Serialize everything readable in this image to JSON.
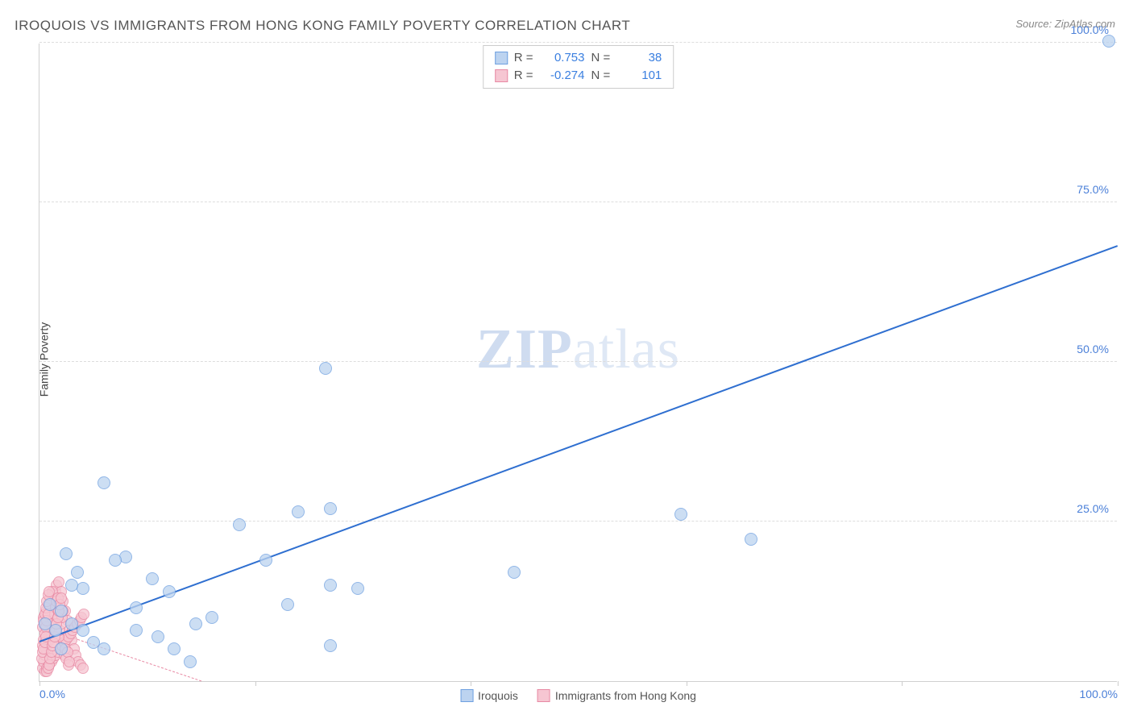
{
  "title": "IROQUOIS VS IMMIGRANTS FROM HONG KONG FAMILY POVERTY CORRELATION CHART",
  "source": "Source: ZipAtlas.com",
  "ylabel": "Family Poverty",
  "watermark_a": "ZIP",
  "watermark_b": "atlas",
  "chart": {
    "type": "scatter",
    "xlim": [
      0,
      100
    ],
    "ylim": [
      0,
      100
    ],
    "x_tick_positions": [
      0,
      20,
      40,
      60,
      80,
      100
    ],
    "x_tick_labels": [
      "0.0%",
      "",
      "",
      "",
      "",
      "100.0%"
    ],
    "y_gridlines": [
      25,
      50,
      75,
      100
    ],
    "y_tick_labels": [
      "25.0%",
      "50.0%",
      "75.0%",
      "100.0%"
    ],
    "background_color": "#ffffff",
    "grid_color": "#dddddd",
    "axis_color": "#d0d0d0",
    "tick_label_color": "#4a7fd8",
    "title_color": "#555555",
    "title_fontsize": 17,
    "label_fontsize": 14
  },
  "series": [
    {
      "name": "Iroquois",
      "marker_fill": "#bcd3f0",
      "marker_stroke": "#6ea0e0",
      "marker_radius": 8,
      "trend_color": "#2f6fd0",
      "trend_style": "solid",
      "trend_width": 2,
      "R": "0.753",
      "N": "38",
      "trend": {
        "x1": 0,
        "y1": 6,
        "x2": 100,
        "y2": 68
      },
      "points": [
        [
          99.2,
          100.2
        ],
        [
          59.5,
          26.1
        ],
        [
          66.0,
          22.2
        ],
        [
          44.0,
          17.0
        ],
        [
          26.5,
          49.0
        ],
        [
          24.0,
          26.5
        ],
        [
          27.0,
          27.0
        ],
        [
          18.5,
          24.5
        ],
        [
          21.0,
          19.0
        ],
        [
          23.0,
          12.0
        ],
        [
          27.0,
          15.0
        ],
        [
          29.5,
          14.5
        ],
        [
          27.0,
          5.5
        ],
        [
          14.0,
          3.0
        ],
        [
          14.5,
          9.0
        ],
        [
          16.0,
          10.0
        ],
        [
          12.0,
          14.0
        ],
        [
          12.5,
          5.0
        ],
        [
          10.5,
          16.0
        ],
        [
          11.0,
          7.0
        ],
        [
          9.0,
          11.5
        ],
        [
          9.0,
          8.0
        ],
        [
          8.0,
          19.5
        ],
        [
          7.0,
          19.0
        ],
        [
          6.0,
          31.0
        ],
        [
          4.0,
          14.5
        ],
        [
          3.5,
          17.0
        ],
        [
          3.0,
          15.0
        ],
        [
          2.5,
          20.0
        ],
        [
          2.0,
          11.0
        ],
        [
          3.0,
          9.0
        ],
        [
          4.0,
          8.0
        ],
        [
          5.0,
          6.0
        ],
        [
          6.0,
          5.0
        ],
        [
          2.0,
          5.0
        ],
        [
          1.5,
          8.0
        ],
        [
          1.0,
          12.0
        ],
        [
          0.5,
          9.0
        ]
      ]
    },
    {
      "name": "Immigrants from Hong Kong",
      "marker_fill": "#f6c6d2",
      "marker_stroke": "#e88aa4",
      "marker_radius": 7,
      "trend_color": "#e88aa4",
      "trend_style": "dashed",
      "trend_width": 1.5,
      "R": "-0.274",
      "N": "101",
      "trend": {
        "x1": 0,
        "y1": 8.5,
        "x2": 15,
        "y2": 0
      },
      "points": [
        [
          0.3,
          2.0
        ],
        [
          0.4,
          3.0
        ],
        [
          0.5,
          4.0
        ],
        [
          0.6,
          5.0
        ],
        [
          0.7,
          6.0
        ],
        [
          0.8,
          7.0
        ],
        [
          0.9,
          8.0
        ],
        [
          1.0,
          9.0
        ],
        [
          1.1,
          10.0
        ],
        [
          1.2,
          11.0
        ],
        [
          1.3,
          12.0
        ],
        [
          1.4,
          13.0
        ],
        [
          1.5,
          14.0
        ],
        [
          1.6,
          15.0
        ],
        [
          1.8,
          15.5
        ],
        [
          2.0,
          14.0
        ],
        [
          2.2,
          12.5
        ],
        [
          2.4,
          11.0
        ],
        [
          2.6,
          9.5
        ],
        [
          2.8,
          8.0
        ],
        [
          3.0,
          6.5
        ],
        [
          3.2,
          5.0
        ],
        [
          3.4,
          4.0
        ],
        [
          3.6,
          3.0
        ],
        [
          3.8,
          2.5
        ],
        [
          0.5,
          1.5
        ],
        [
          0.7,
          2.0
        ],
        [
          0.9,
          2.5
        ],
        [
          1.1,
          3.0
        ],
        [
          1.3,
          3.5
        ],
        [
          1.5,
          4.0
        ],
        [
          1.7,
          4.5
        ],
        [
          1.9,
          5.0
        ],
        [
          2.1,
          5.5
        ],
        [
          2.3,
          6.0
        ],
        [
          2.5,
          6.5
        ],
        [
          2.7,
          7.0
        ],
        [
          2.9,
          7.5
        ],
        [
          3.1,
          8.0
        ],
        [
          3.3,
          8.5
        ],
        [
          3.5,
          9.0
        ],
        [
          3.7,
          9.5
        ],
        [
          3.9,
          10.0
        ],
        [
          4.1,
          10.5
        ],
        [
          0.4,
          10.0
        ],
        [
          0.6,
          11.0
        ],
        [
          0.8,
          12.0
        ],
        [
          1.0,
          13.0
        ],
        [
          1.2,
          14.0
        ],
        [
          0.3,
          8.5
        ],
        [
          0.4,
          9.5
        ],
        [
          0.5,
          10.5
        ],
        [
          0.6,
          11.5
        ],
        [
          0.7,
          12.5
        ],
        [
          0.8,
          13.5
        ],
        [
          0.9,
          14.0
        ],
        [
          1.0,
          6.5
        ],
        [
          1.1,
          7.5
        ],
        [
          1.2,
          8.5
        ],
        [
          1.3,
          9.5
        ],
        [
          1.4,
          10.5
        ],
        [
          1.5,
          11.5
        ],
        [
          1.6,
          12.5
        ],
        [
          1.7,
          13.0
        ],
        [
          1.8,
          7.0
        ],
        [
          1.9,
          8.0
        ],
        [
          2.0,
          9.0
        ],
        [
          2.1,
          10.0
        ],
        [
          2.2,
          11.0
        ],
        [
          2.3,
          4.0
        ],
        [
          2.4,
          5.0
        ],
        [
          2.5,
          3.5
        ],
        [
          2.6,
          4.5
        ],
        [
          2.7,
          2.5
        ],
        [
          2.8,
          3.0
        ],
        [
          0.3,
          5.5
        ],
        [
          0.4,
          6.5
        ],
        [
          0.5,
          7.5
        ],
        [
          0.6,
          8.5
        ],
        [
          0.7,
          9.5
        ],
        [
          0.8,
          10.5
        ],
        [
          0.2,
          3.5
        ],
        [
          0.3,
          4.5
        ],
        [
          0.4,
          5.0
        ],
        [
          0.5,
          6.0
        ],
        [
          0.6,
          7.0
        ],
        [
          0.7,
          1.5
        ],
        [
          0.8,
          2.0
        ],
        [
          0.9,
          2.5
        ],
        [
          1.0,
          3.5
        ],
        [
          1.1,
          4.5
        ],
        [
          1.2,
          5.5
        ],
        [
          1.3,
          6.0
        ],
        [
          1.4,
          7.0
        ],
        [
          1.5,
          8.0
        ],
        [
          1.6,
          9.0
        ],
        [
          1.7,
          10.0
        ],
        [
          1.8,
          11.0
        ],
        [
          1.9,
          12.0
        ],
        [
          2.0,
          13.0
        ],
        [
          4.0,
          2.0
        ]
      ]
    }
  ],
  "stats_box": {
    "r_label": "R =",
    "n_label": "N ="
  },
  "legend": {
    "series1_label": "Iroquois",
    "series2_label": "Immigrants from Hong Kong"
  }
}
